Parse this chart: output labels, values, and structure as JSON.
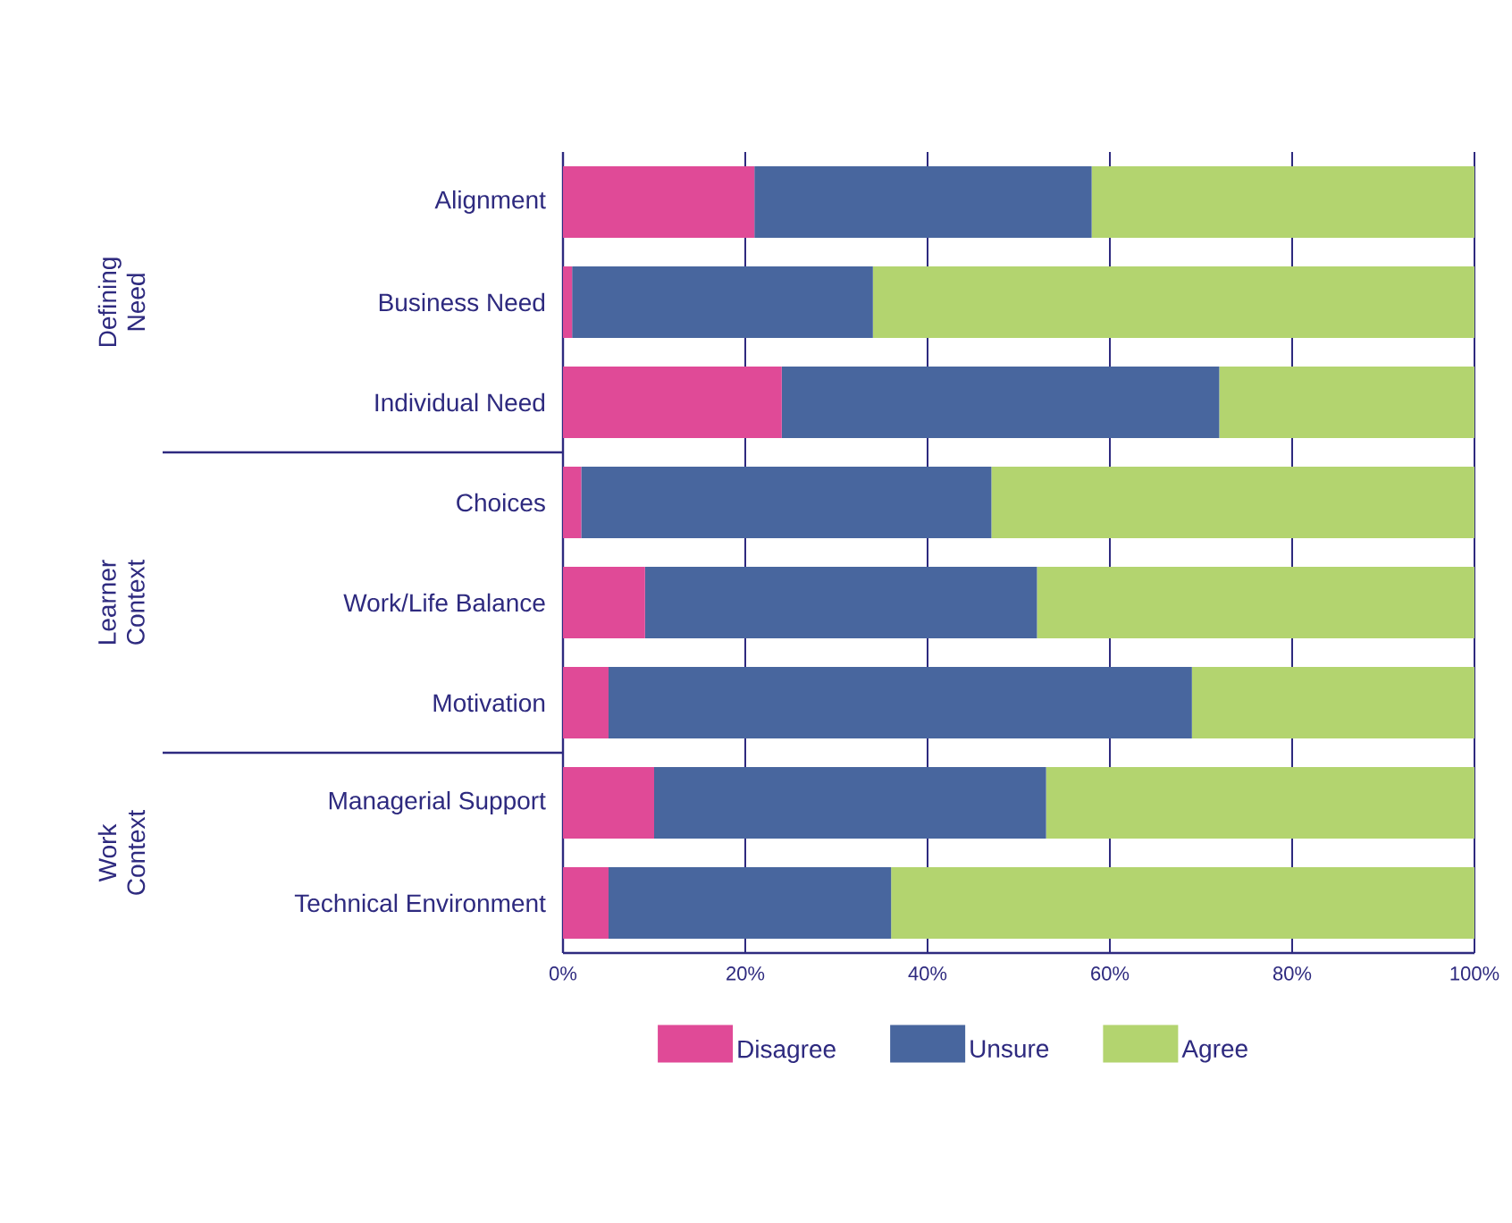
{
  "chart_data": {
    "type": "bar",
    "orientation": "horizontal",
    "stacked": true,
    "categories": [
      "Alignment",
      "Business Need",
      "Individual Need",
      "Choices",
      "Work/Life Balance",
      "Motivation",
      "Managerial Support",
      "Technical Environment"
    ],
    "series": [
      {
        "name": "Disagree",
        "color": "#e04a97",
        "values": [
          21,
          1,
          24,
          2,
          9,
          5,
          10,
          5
        ]
      },
      {
        "name": "Unsure",
        "color": "#48669e",
        "values": [
          37,
          33,
          48,
          45,
          43,
          64,
          43,
          31
        ]
      },
      {
        "name": "Agree",
        "color": "#b3d46f",
        "values": [
          42,
          66,
          28,
          53,
          48,
          31,
          47,
          64
        ]
      }
    ],
    "xlim": [
      0,
      100
    ],
    "xticks": [
      {
        "value": 0,
        "label": "0%"
      },
      {
        "value": 20,
        "label": "20%"
      },
      {
        "value": 40,
        "label": "40%"
      },
      {
        "value": 60,
        "label": "60%"
      },
      {
        "value": 80,
        "label": "80%"
      },
      {
        "value": 100,
        "label": "100%"
      }
    ],
    "grid": "x",
    "legend": "bottom",
    "annotations": [
      "Defining Need",
      "Learner Context",
      "Work Context"
    ]
  }
}
